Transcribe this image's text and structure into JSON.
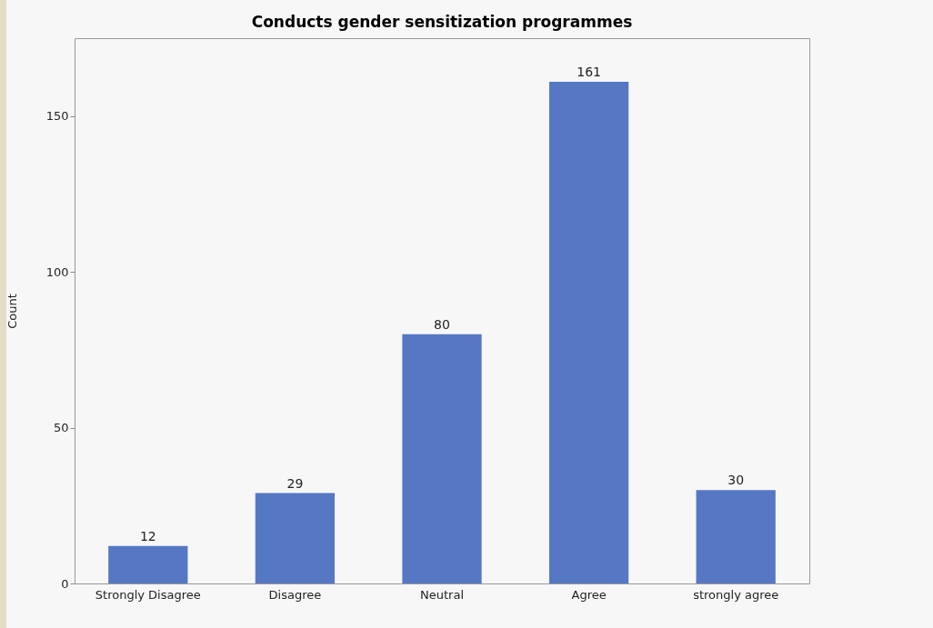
{
  "chart_data": {
    "type": "bar",
    "title": "Conducts gender sensitization programmes",
    "ylabel": "Count",
    "categories": [
      "Strongly Disagree",
      "Disagree",
      "Neutral",
      "Agree",
      "strongly agree"
    ],
    "values": [
      12,
      29,
      80,
      161,
      30
    ],
    "color": "#5677c4",
    "ylim": [
      0,
      175
    ],
    "yticks": [
      0,
      50,
      100,
      150
    ],
    "grid": false,
    "data_labels": true
  }
}
